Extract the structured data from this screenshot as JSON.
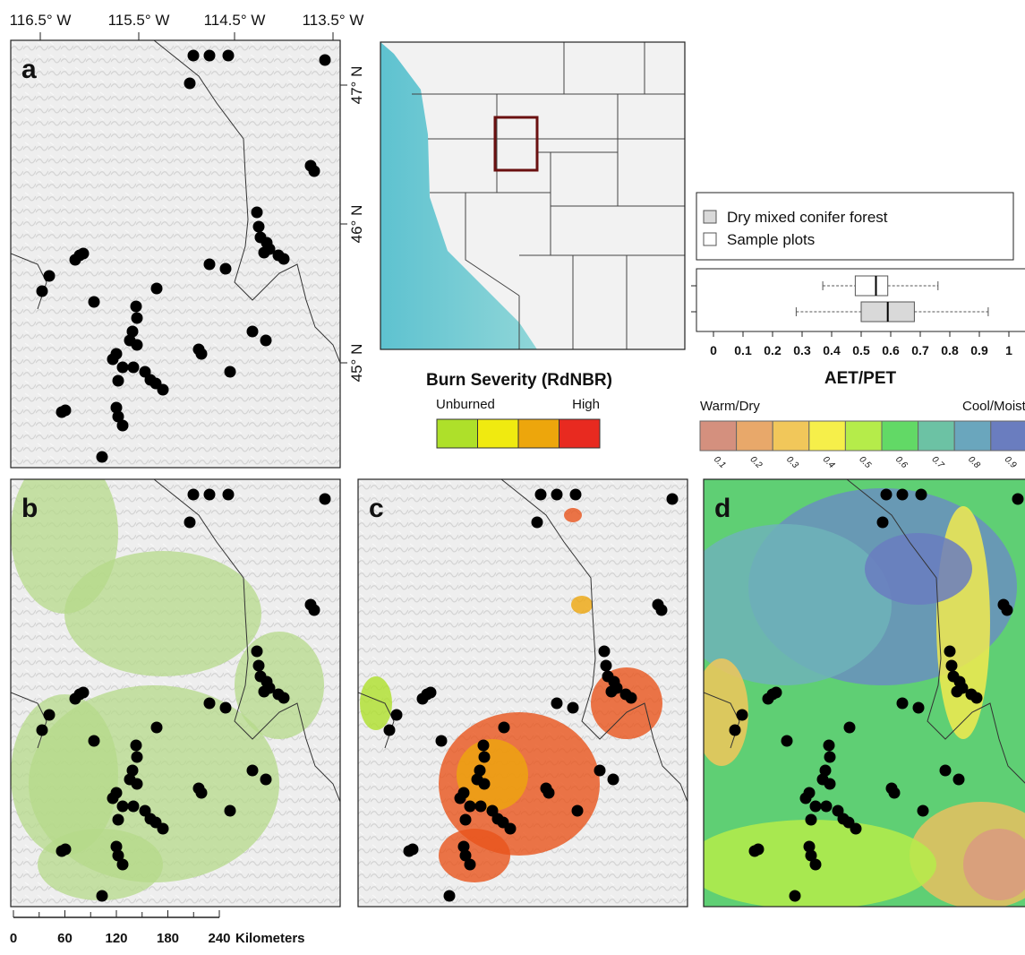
{
  "lon_labels": [
    "116.5° W",
    "115.5° W",
    "114.5° W",
    "113.5° W"
  ],
  "lat_labels": [
    "47° N",
    "46° N",
    "45° N"
  ],
  "panel_labels": [
    "a",
    "b",
    "c",
    "d"
  ],
  "chart_data": {
    "type": "boxplot",
    "x_label": "AET/PET",
    "xlim": [
      0,
      1
    ],
    "xticks": [
      0,
      0.1,
      0.2,
      0.3,
      0.4,
      0.5,
      0.6,
      0.7,
      0.8,
      0.9,
      1
    ],
    "series": [
      {
        "name": "Dry mixed conifer forest",
        "color": "#d9d9d9",
        "min": 0.28,
        "q1": 0.5,
        "median": 0.59,
        "q3": 0.68,
        "max": 0.93
      },
      {
        "name": "Sample plots",
        "color": "#ffffff",
        "min": 0.37,
        "q1": 0.48,
        "median": 0.55,
        "q3": 0.59,
        "max": 0.76
      }
    ]
  },
  "burn_legend": {
    "title": "Burn Severity (RdNBR)",
    "low_label": "Unburned",
    "high_label": "High",
    "colors": [
      "#aee02a",
      "#f0ea10",
      "#eda60c",
      "#e82a20"
    ]
  },
  "aet_legend": {
    "low_label": "Warm/Dry",
    "high_label": "Cool/Moist",
    "classes": [
      {
        "label": "0.1",
        "color": "#d4907e"
      },
      {
        "label": "0.2",
        "color": "#e8a86a"
      },
      {
        "label": "0.3",
        "color": "#f1c75a"
      },
      {
        "label": "0.4",
        "color": "#f6ef4a"
      },
      {
        "label": "0.5",
        "color": "#b5ec4a"
      },
      {
        "label": "0.6",
        "color": "#62d966"
      },
      {
        "label": "0.7",
        "color": "#6cc2a4"
      },
      {
        "label": "0.8",
        "color": "#6aa6bd"
      },
      {
        "label": "0.9",
        "color": "#6a7dbf"
      }
    ]
  },
  "scale_bar": {
    "ticks": [
      0,
      60,
      120,
      180,
      240
    ],
    "unit": "Kilometers"
  }
}
